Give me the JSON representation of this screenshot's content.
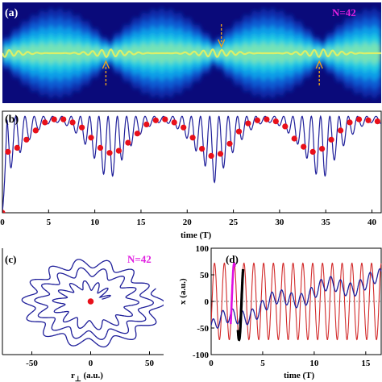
{
  "figure": {
    "panel_a": {
      "label": "(a)",
      "annotation": "N=42"
    },
    "panel_b": {
      "label": "(b)"
    },
    "panel_c": {
      "label": "(c)",
      "annotation": "N=42"
    },
    "panel_d": {
      "label": "(d)"
    }
  },
  "colors": {
    "panel_a_background": "#0a0a7a",
    "curve_blue": "#1f1f9a",
    "marker_red": "#e8101a",
    "curve_red": "#d22a2a",
    "highlight_magenta": "#e010e0",
    "highlight_black": "#000000",
    "annotation_magenta": "#e020e0",
    "arrow_orange": "#e8a020"
  },
  "chart_data": [
    {
      "id": "a",
      "type": "heatmap",
      "title": "",
      "xlim": [
        0,
        41
      ],
      "annotation": "N=42",
      "arrows": [
        {
          "t": 11.2,
          "direction": "up"
        },
        {
          "t": 23.7,
          "direction": "down"
        },
        {
          "t": 34.3,
          "direction": "up"
        }
      ]
    },
    {
      "id": "b",
      "type": "line",
      "xlabel": "time (T)",
      "xlim": [
        0,
        41
      ],
      "ylim": [
        0,
        1
      ],
      "xticks": [
        0,
        5,
        10,
        15,
        20,
        25,
        30,
        35,
        40
      ],
      "xtick_labels": [
        "0",
        "5",
        "10",
        "15",
        "20",
        "25",
        "30",
        "35",
        "40"
      ],
      "series": [
        {
          "kind": "oscillating curve",
          "envelope_period": 11.5,
          "oscillation_period": 1.0
        },
        {
          "kind": "markers",
          "x": [
            0.0,
            0.6,
            1.6,
            2.6,
            3.6,
            4.6,
            5.6,
            6.6,
            7.6,
            8.6,
            9.6,
            10.6,
            11.6,
            12.6,
            13.6,
            14.6,
            15.6,
            16.6,
            17.6,
            18.6,
            19.6,
            20.6,
            21.6,
            22.6,
            23.6,
            24.6,
            25.6,
            26.6,
            27.6,
            28.6,
            29.6,
            30.6,
            31.6,
            32.6,
            33.6,
            34.6,
            35.6,
            36.6,
            37.6,
            38.6,
            39.6,
            40.6
          ],
          "y": [
            0.0,
            0.6,
            0.64,
            0.72,
            0.81,
            0.89,
            0.92,
            0.92,
            0.89,
            0.84,
            0.74,
            0.64,
            0.59,
            0.61,
            0.69,
            0.78,
            0.87,
            0.91,
            0.92,
            0.89,
            0.84,
            0.74,
            0.63,
            0.56,
            0.58,
            0.68,
            0.8,
            0.88,
            0.91,
            0.92,
            0.9,
            0.85,
            0.73,
            0.65,
            0.6,
            0.63,
            0.72,
            0.81,
            0.89,
            0.92,
            0.91,
            0.9
          ]
        }
      ]
    },
    {
      "id": "c",
      "type": "line",
      "xlabel": "r",
      "xlabel_subscript": "⊥",
      "xlabel_units": " (a.u.)",
      "xlim": [
        -75,
        62
      ],
      "ylim": [
        -65,
        65
      ],
      "xticks": [
        -50,
        0,
        50
      ],
      "xtick_labels": [
        "-50",
        "0",
        "50"
      ],
      "annotation": "N=42",
      "center_point": {
        "x": 0,
        "y": 0
      }
    },
    {
      "id": "d",
      "type": "line",
      "xlabel": "time (T)",
      "ylabel": "x (a.u.)",
      "xlim": [
        0,
        16.5
      ],
      "ylim": [
        -100,
        100
      ],
      "xticks": [
        0,
        5,
        10,
        15
      ],
      "xtick_labels": [
        "0",
        "5",
        "10",
        "15"
      ],
      "yticks": [
        -100,
        -50,
        0,
        50,
        100
      ],
      "ytick_labels": [
        "-100",
        "-50",
        "0",
        "50",
        "100"
      ],
      "highlight_intervals": [
        [
          1.9,
          2.3
        ],
        [
          2.6,
          3.1
        ]
      ]
    }
  ]
}
